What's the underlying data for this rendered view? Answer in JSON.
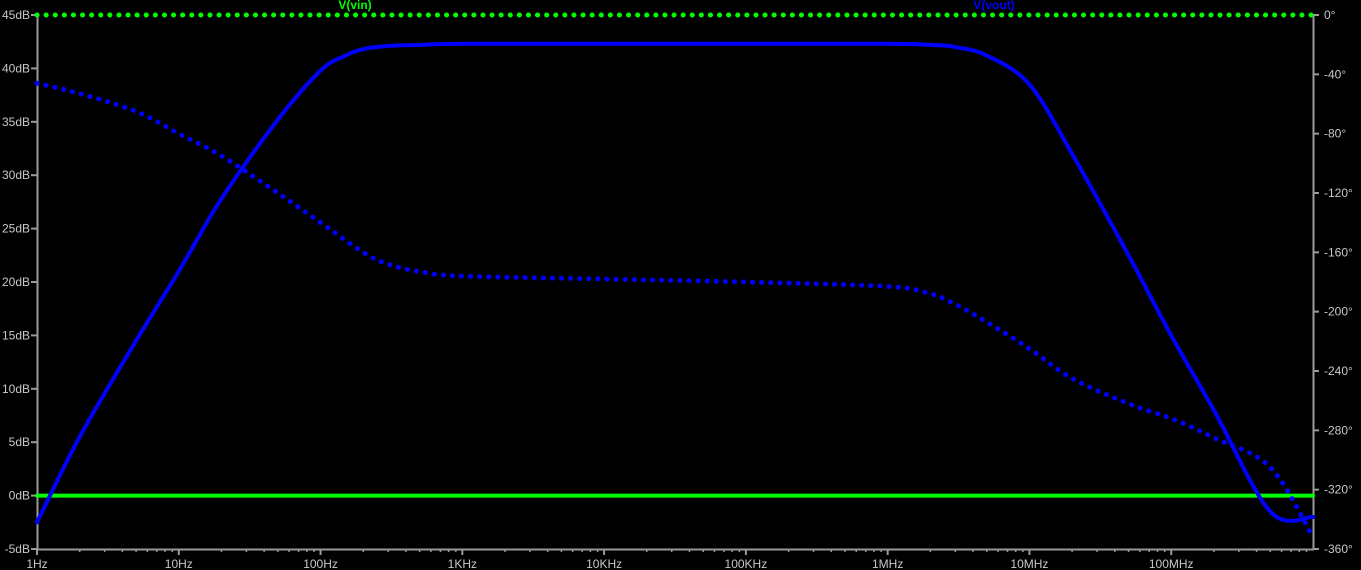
{
  "chart_data": {
    "type": "line",
    "title": "",
    "legend": [
      {
        "name": "V(vin)",
        "color": "#00ff00"
      },
      {
        "name": "V(vout)",
        "color": "#0000ff"
      }
    ],
    "x_axis": {
      "scale": "log",
      "range_hz": [
        1,
        1000000000
      ],
      "tick_labels": [
        "1Hz",
        "10Hz",
        "100Hz",
        "1KHz",
        "10KHz",
        "100KHz",
        "1MHz",
        "10MHz",
        "100MHz"
      ],
      "tick_values_hz": [
        1,
        10,
        100,
        1000,
        10000,
        100000,
        1000000,
        10000000,
        100000000
      ]
    },
    "y_left": {
      "unit": "dB",
      "range": [
        -5,
        45
      ],
      "tick_labels": [
        "45dB",
        "40dB",
        "35dB",
        "30dB",
        "25dB",
        "20dB",
        "15dB",
        "10dB",
        "5dB",
        "0dB",
        "-5dB"
      ],
      "tick_values": [
        45,
        40,
        35,
        30,
        25,
        20,
        15,
        10,
        5,
        0,
        -5
      ]
    },
    "y_right": {
      "unit": "deg",
      "range": [
        -360,
        0
      ],
      "tick_labels": [
        "0°",
        "-40°",
        "-80°",
        "-120°",
        "-160°",
        "-200°",
        "-240°",
        "-280°",
        "-320°",
        "-360°"
      ],
      "tick_values": [
        0,
        -40,
        -80,
        -120,
        -160,
        -200,
        -240,
        -280,
        -320,
        -360
      ]
    },
    "grid": false,
    "series": [
      {
        "name": "V(vin)",
        "quantity": "magnitude",
        "color": "#00ff00",
        "x_hz": [
          1,
          1000000000
        ],
        "y_db": [
          0,
          0
        ]
      },
      {
        "name": "V(vin)",
        "quantity": "phase",
        "color": "#00ff00",
        "x_hz": [
          1,
          1000000000
        ],
        "y_deg": [
          0,
          0
        ]
      },
      {
        "name": "V(vout)",
        "quantity": "magnitude",
        "color": "#0000ff",
        "x_hz": [
          1,
          2,
          5,
          10,
          20,
          50,
          100,
          150,
          200,
          300,
          500,
          1000,
          10000,
          100000,
          1000000,
          2000000,
          3000000,
          5000000,
          10000000,
          20000000,
          50000000,
          100000000,
          200000000,
          500000000,
          1000000000
        ],
        "y_db": [
          -2.5,
          5.5,
          14.5,
          21,
          27.8,
          35.2,
          39.8,
          41.2,
          41.8,
          42.1,
          42.2,
          42.3,
          42.3,
          42.3,
          42.3,
          42.2,
          42.0,
          41.2,
          38.5,
          32.0,
          22.5,
          15.0,
          8.0,
          -1.5,
          -2.0
        ]
      },
      {
        "name": "V(vout)",
        "quantity": "phase",
        "color": "#0000ff",
        "x_hz": [
          1,
          2,
          5,
          10,
          20,
          50,
          100,
          200,
          300,
          500,
          1000,
          10000,
          100000,
          1000000,
          2000000,
          3000000,
          5000000,
          10000000,
          20000000,
          50000000,
          100000000,
          200000000,
          500000000,
          1000000000
        ],
        "y_deg": [
          -46,
          -53,
          -65,
          -80,
          -95,
          -120,
          -140,
          -160,
          -168,
          -173,
          -176,
          -178,
          -180,
          -183,
          -188,
          -195,
          -207,
          -225,
          -245,
          -262,
          -272,
          -285,
          -305,
          -352
        ]
      }
    ]
  }
}
